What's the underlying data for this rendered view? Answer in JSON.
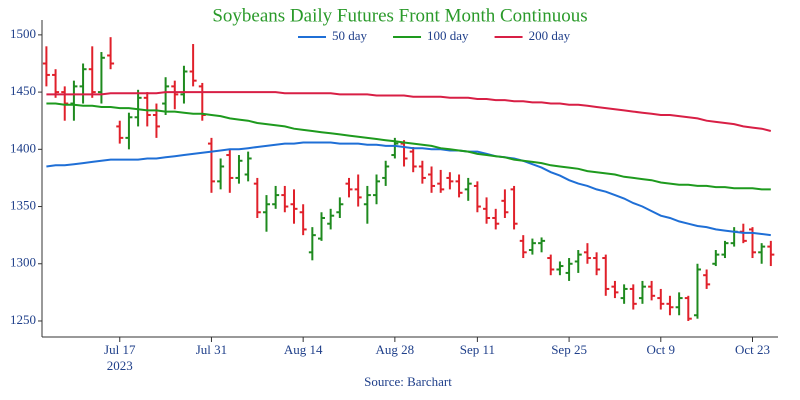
{
  "chart_data": {
    "type": "ohlc",
    "title": "Soybeans Daily Futures Front Month Continuous",
    "source": "Source: Barchart",
    "x": [
      "2023-07-05",
      "2023-07-06",
      "2023-07-07",
      "2023-07-10",
      "2023-07-11",
      "2023-07-12",
      "2023-07-13",
      "2023-07-14",
      "2023-07-17",
      "2023-07-18",
      "2023-07-19",
      "2023-07-20",
      "2023-07-21",
      "2023-07-24",
      "2023-07-25",
      "2023-07-26",
      "2023-07-27",
      "2023-07-28",
      "2023-07-31",
      "2023-08-01",
      "2023-08-02",
      "2023-08-03",
      "2023-08-04",
      "2023-08-07",
      "2023-08-08",
      "2023-08-09",
      "2023-08-10",
      "2023-08-11",
      "2023-08-14",
      "2023-08-15",
      "2023-08-16",
      "2023-08-17",
      "2023-08-18",
      "2023-08-21",
      "2023-08-22",
      "2023-08-23",
      "2023-08-24",
      "2023-08-25",
      "2023-08-28",
      "2023-08-29",
      "2023-08-30",
      "2023-08-31",
      "2023-09-01",
      "2023-09-05",
      "2023-09-06",
      "2023-09-07",
      "2023-09-08",
      "2023-09-11",
      "2023-09-12",
      "2023-09-13",
      "2023-09-14",
      "2023-09-15",
      "2023-09-18",
      "2023-09-19",
      "2023-09-20",
      "2023-09-21",
      "2023-09-22",
      "2023-09-25",
      "2023-09-26",
      "2023-09-27",
      "2023-09-28",
      "2023-09-29",
      "2023-10-02",
      "2023-10-03",
      "2023-10-04",
      "2023-10-05",
      "2023-10-06",
      "2023-10-09",
      "2023-10-10",
      "2023-10-11",
      "2023-10-12",
      "2023-10-13",
      "2023-10-16",
      "2023-10-17",
      "2023-10-18",
      "2023-10-19",
      "2023-10-20",
      "2023-10-23",
      "2023-10-24",
      "2023-10-25"
    ],
    "open": [
      1475,
      1465,
      1450,
      1440,
      1455,
      1470,
      1450,
      1482,
      1420,
      1410,
      1428,
      1445,
      1430,
      1440,
      1455,
      1448,
      1468,
      1455,
      1405,
      1372,
      1395,
      1375,
      1378,
      1370,
      1345,
      1352,
      1360,
      1352,
      1345,
      1310,
      1322,
      1335,
      1345,
      1370,
      1365,
      1352,
      1360,
      1375,
      1395,
      1405,
      1398,
      1385,
      1378,
      1370,
      1375,
      1372,
      1365,
      1368,
      1348,
      1340,
      1355,
      1365,
      1320,
      1312,
      1318,
      1305,
      1295,
      1292,
      1302,
      1310,
      1305,
      1305,
      1280,
      1270,
      1278,
      1270,
      1280,
      1270,
      1265,
      1262,
      1270,
      1255,
      1290,
      1300,
      1308,
      1318,
      1328,
      1330,
      1310,
      1315
    ],
    "high": [
      1490,
      1470,
      1455,
      1460,
      1475,
      1490,
      1485,
      1498,
      1425,
      1432,
      1452,
      1450,
      1440,
      1463,
      1460,
      1473,
      1492,
      1458,
      1410,
      1392,
      1400,
      1395,
      1398,
      1375,
      1360,
      1368,
      1368,
      1365,
      1352,
      1332,
      1345,
      1348,
      1358,
      1375,
      1378,
      1368,
      1378,
      1390,
      1410,
      1408,
      1402,
      1390,
      1385,
      1382,
      1380,
      1378,
      1375,
      1372,
      1358,
      1348,
      1365,
      1368,
      1325,
      1322,
      1323,
      1308,
      1302,
      1305,
      1312,
      1318,
      1310,
      1308,
      1285,
      1282,
      1282,
      1285,
      1285,
      1278,
      1272,
      1275,
      1272,
      1300,
      1295,
      1312,
      1320,
      1332,
      1335,
      1332,
      1318,
      1320
    ],
    "low": [
      1455,
      1445,
      1425,
      1425,
      1440,
      1445,
      1440,
      1470,
      1405,
      1400,
      1420,
      1420,
      1410,
      1430,
      1435,
      1440,
      1455,
      1425,
      1362,
      1365,
      1362,
      1370,
      1372,
      1340,
      1328,
      1348,
      1345,
      1335,
      1325,
      1303,
      1320,
      1330,
      1340,
      1358,
      1350,
      1335,
      1352,
      1368,
      1392,
      1385,
      1380,
      1370,
      1362,
      1362,
      1365,
      1358,
      1355,
      1345,
      1335,
      1330,
      1340,
      1330,
      1305,
      1308,
      1310,
      1290,
      1290,
      1285,
      1292,
      1300,
      1290,
      1272,
      1270,
      1265,
      1260,
      1265,
      1268,
      1260,
      1255,
      1255,
      1250,
      1252,
      1278,
      1298,
      1305,
      1315,
      1318,
      1305,
      1300,
      1298
    ],
    "close": [
      1465,
      1450,
      1440,
      1455,
      1470,
      1450,
      1480,
      1475,
      1410,
      1428,
      1445,
      1430,
      1420,
      1455,
      1448,
      1468,
      1460,
      1430,
      1372,
      1385,
      1375,
      1390,
      1392,
      1345,
      1352,
      1360,
      1350,
      1348,
      1330,
      1325,
      1340,
      1342,
      1352,
      1365,
      1358,
      1360,
      1372,
      1385,
      1405,
      1392,
      1385,
      1375,
      1368,
      1365,
      1372,
      1362,
      1370,
      1350,
      1340,
      1335,
      1345,
      1335,
      1310,
      1318,
      1320,
      1295,
      1298,
      1300,
      1308,
      1305,
      1295,
      1278,
      1275,
      1278,
      1265,
      1280,
      1272,
      1265,
      1262,
      1270,
      1252,
      1295,
      1282,
      1308,
      1318,
      1328,
      1320,
      1310,
      1315,
      1308
    ],
    "up_color": "#1e8a1e",
    "down_color": "#e0202a",
    "lines": [
      {
        "name": "50 day",
        "color": "#1f6fd6",
        "values": [
          1385,
          1386,
          1386,
          1387,
          1388,
          1389,
          1390,
          1391,
          1391,
          1391,
          1391,
          1392,
          1392,
          1393,
          1394,
          1395,
          1396,
          1397,
          1398,
          1399,
          1400,
          1400,
          1401,
          1402,
          1403,
          1404,
          1405,
          1405,
          1406,
          1406,
          1406,
          1406,
          1405,
          1405,
          1405,
          1404,
          1404,
          1403,
          1403,
          1402,
          1401,
          1401,
          1400,
          1400,
          1399,
          1399,
          1398,
          1398,
          1396,
          1394,
          1393,
          1392,
          1390,
          1387,
          1384,
          1380,
          1377,
          1373,
          1370,
          1368,
          1365,
          1363,
          1360,
          1357,
          1353,
          1350,
          1346,
          1342,
          1340,
          1337,
          1335,
          1333,
          1332,
          1330,
          1329,
          1328,
          1327,
          1327,
          1326,
          1325
        ]
      },
      {
        "name": "100 day",
        "color": "#1e9a1e",
        "values": [
          1440,
          1440,
          1439,
          1439,
          1438,
          1438,
          1437,
          1437,
          1436,
          1436,
          1435,
          1434,
          1434,
          1433,
          1433,
          1432,
          1431,
          1431,
          1430,
          1429,
          1427,
          1426,
          1425,
          1423,
          1422,
          1421,
          1420,
          1418,
          1417,
          1416,
          1415,
          1414,
          1413,
          1412,
          1411,
          1410,
          1409,
          1408,
          1407,
          1406,
          1405,
          1404,
          1403,
          1401,
          1400,
          1399,
          1398,
          1396,
          1395,
          1394,
          1393,
          1391,
          1390,
          1389,
          1388,
          1386,
          1385,
          1384,
          1383,
          1381,
          1380,
          1379,
          1378,
          1376,
          1375,
          1374,
          1373,
          1371,
          1370,
          1369,
          1369,
          1368,
          1368,
          1367,
          1367,
          1366,
          1366,
          1366,
          1365,
          1365
        ]
      },
      {
        "name": "200 day",
        "color": "#d81f45",
        "values": [
          1448,
          1448,
          1448,
          1448,
          1448,
          1448,
          1448,
          1449,
          1449,
          1449,
          1449,
          1449,
          1449,
          1450,
          1450,
          1450,
          1450,
          1450,
          1450,
          1450,
          1450,
          1450,
          1450,
          1450,
          1450,
          1450,
          1449,
          1449,
          1449,
          1449,
          1449,
          1449,
          1448,
          1448,
          1448,
          1448,
          1447,
          1447,
          1447,
          1447,
          1446,
          1446,
          1446,
          1446,
          1445,
          1445,
          1445,
          1444,
          1444,
          1443,
          1443,
          1442,
          1442,
          1441,
          1441,
          1440,
          1440,
          1439,
          1439,
          1438,
          1437,
          1436,
          1435,
          1434,
          1433,
          1432,
          1431,
          1430,
          1430,
          1429,
          1428,
          1427,
          1425,
          1424,
          1423,
          1422,
          1420,
          1419,
          1418,
          1416
        ]
      }
    ],
    "ylim": [
      1236,
      1513
    ],
    "yticks": [
      1250,
      1300,
      1350,
      1400,
      1450,
      1500
    ],
    "xticks": [
      {
        "value": "2023-07-17",
        "label": "Jul 17"
      },
      {
        "value": "2023-07-31",
        "label": "Jul 31"
      },
      {
        "value": "2023-08-14",
        "label": "Aug 14"
      },
      {
        "value": "2023-08-28",
        "label": "Aug 28"
      },
      {
        "value": "2023-09-11",
        "label": "Sep 11"
      },
      {
        "value": "2023-09-25",
        "label": "Sep 25"
      },
      {
        "value": "2023-10-09",
        "label": "Oct 9"
      },
      {
        "value": "2023-10-23",
        "label": "Oct 23"
      }
    ],
    "xtick_sublabel": "2023",
    "grid": false
  }
}
